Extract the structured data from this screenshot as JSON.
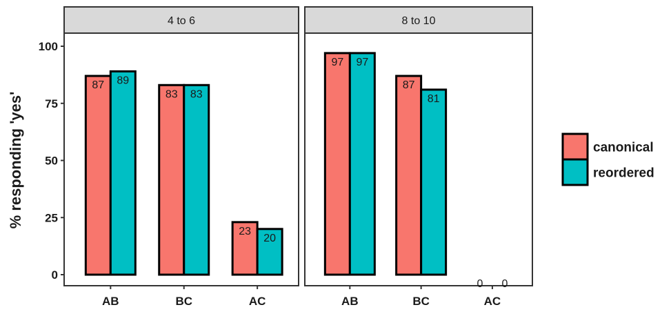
{
  "chart_data": {
    "type": "bar",
    "ylabel": "% responding 'yes'",
    "xlabel": "",
    "ylim": [
      0,
      108
    ],
    "yticks": [
      0,
      25,
      50,
      75,
      100
    ],
    "categories": [
      "AB",
      "BC",
      "AC"
    ],
    "series_names": [
      "canonical",
      "reordered"
    ],
    "colors": {
      "canonical": "#f8766d",
      "reordered": "#00bfc4"
    },
    "panels": [
      {
        "strip": "4 to 6",
        "values": {
          "canonical": [
            87,
            83,
            23
          ],
          "reordered": [
            89,
            83,
            20
          ]
        }
      },
      {
        "strip": "8 to 10",
        "values": {
          "canonical": [
            97,
            87,
            0
          ],
          "reordered": [
            97,
            81,
            0
          ]
        }
      }
    ],
    "legend": {
      "position": "right",
      "items": [
        {
          "label": "canonical",
          "color": "#f8766d"
        },
        {
          "label": "reordered",
          "color": "#00bfc4"
        }
      ]
    }
  }
}
